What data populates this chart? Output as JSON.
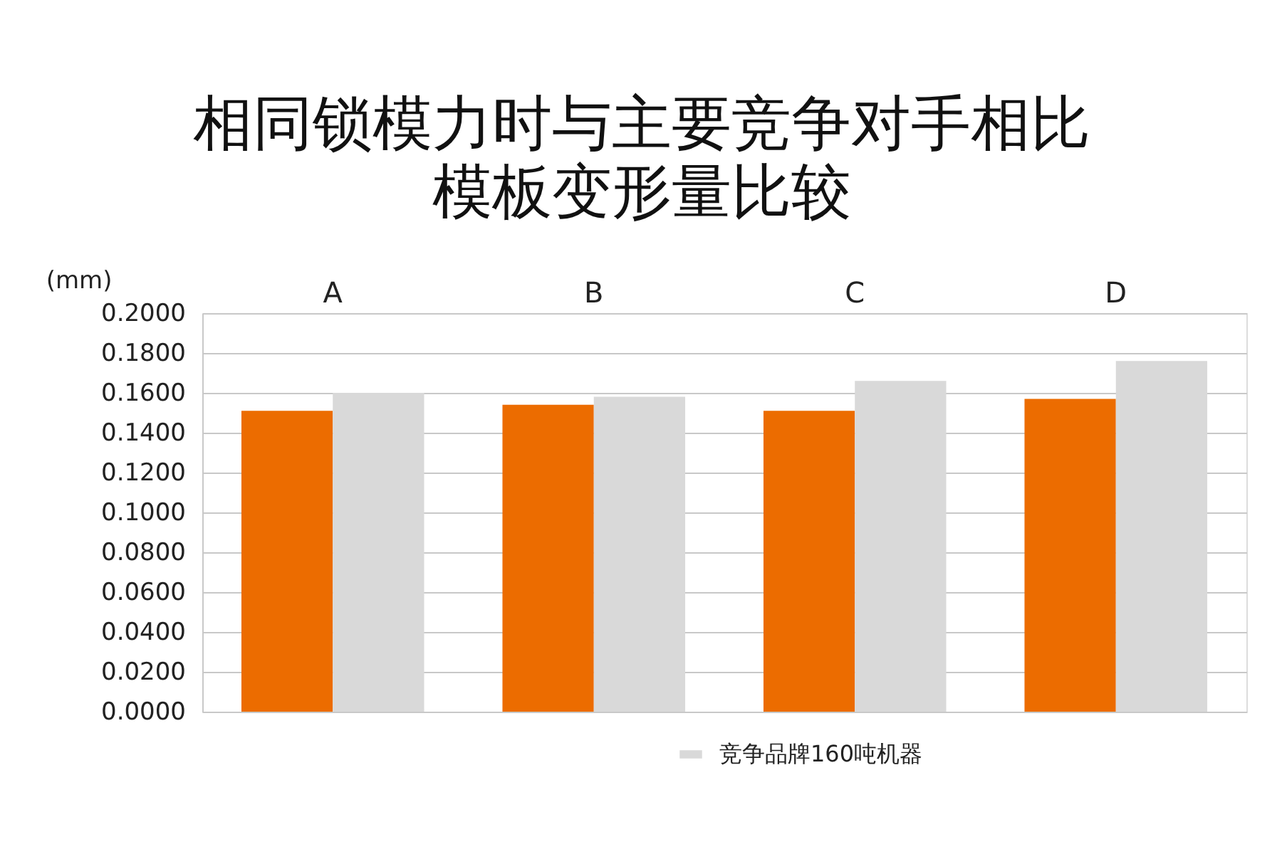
{
  "chart_data": {
    "type": "bar",
    "title": "相同锁模力时与主要竞争对手相比",
    "subtitle": "模板变形量比较",
    "ylabel": "(mm)",
    "categories": [
      "A",
      "B",
      "C",
      "D"
    ],
    "series": [
      {
        "color": "#ec6c00",
        "values": [
          0.151,
          0.154,
          0.151,
          0.157
        ]
      },
      {
        "name": "竞争品牌160吨机器",
        "color": "#d9d9d9",
        "values": [
          0.16,
          0.158,
          0.166,
          0.176
        ]
      }
    ],
    "ylim": [
      0,
      0.2
    ],
    "yticks": [
      {
        "value": 0,
        "label": "0.0000"
      },
      {
        "value": 0.02,
        "label": "0.0200"
      },
      {
        "value": 0.04,
        "label": "0.0400"
      },
      {
        "value": 0.06,
        "label": "0.0600"
      },
      {
        "value": 0.08,
        "label": "0.0800"
      },
      {
        "value": 0.1,
        "label": "0.1000"
      },
      {
        "value": 0.12,
        "label": "0.1200"
      },
      {
        "value": 0.14,
        "label": "0.1400"
      },
      {
        "value": 0.16,
        "label": "0.1600"
      },
      {
        "value": 0.18,
        "label": "0.1800"
      },
      {
        "value": 0.2,
        "label": "0.2000"
      }
    ],
    "grid": "y",
    "legend": "bottom"
  }
}
